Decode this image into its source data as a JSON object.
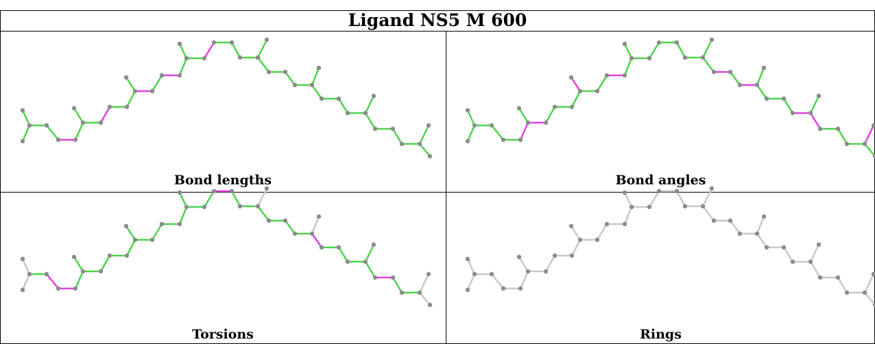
{
  "title": "Ligand NS5 M 600",
  "panels": [
    {
      "label": "Bond lengths"
    },
    {
      "label": "Bond angles"
    },
    {
      "label": "Torsions"
    },
    {
      "label": "Rings"
    }
  ],
  "colors": {
    "ok": "#4cd44c",
    "outlier": "#e040e0",
    "neutral": "#c8c8c8",
    "atom": "#8c8c8c",
    "grid": "#000000"
  }
}
